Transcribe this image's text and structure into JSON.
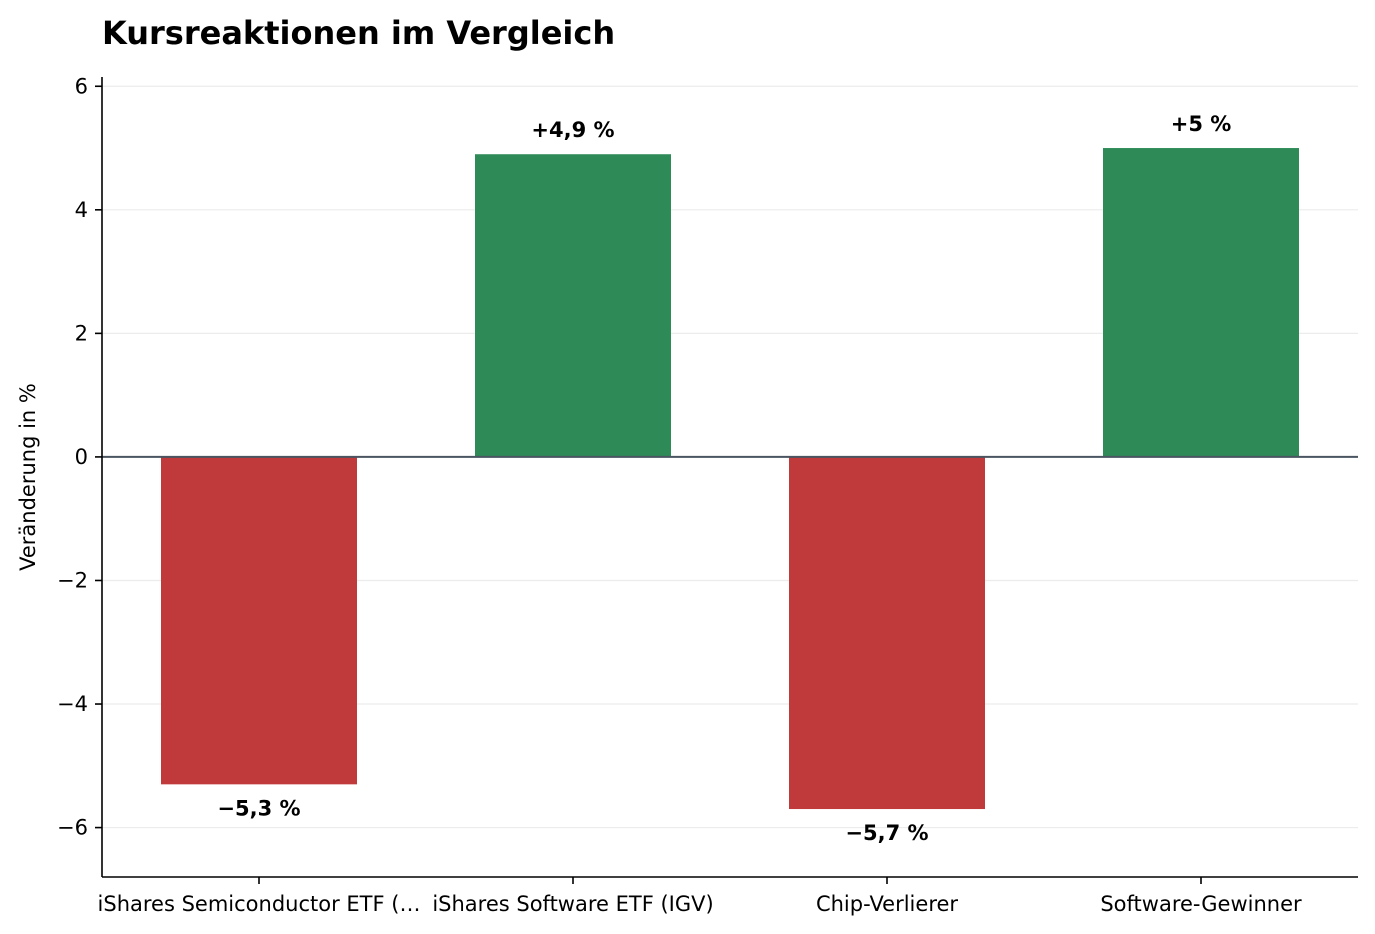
{
  "chart_data": {
    "type": "bar",
    "title": "Kursreaktionen im Vergleich",
    "xlabel": "",
    "ylabel": "Veränderung in %",
    "categories": [
      "iShares Semiconductor ETF (…",
      "iShares Software ETF (IGV)",
      "Chip-Verlierer",
      "Software-Gewinner"
    ],
    "values": [
      -5.3,
      4.9,
      -5.7,
      5.0
    ],
    "value_labels": [
      "−5,3 %",
      "+4,9 %",
      "−5,7 %",
      "+5 %"
    ],
    "bar_colors": [
      "#c0393b",
      "#2e8b57",
      "#c0393b",
      "#2e8b57"
    ],
    "ylim": [
      -6.8,
      6.15
    ],
    "yticks": [
      6,
      4,
      2,
      0,
      -2,
      -4,
      -6
    ],
    "ytick_labels": [
      "6",
      "4",
      "2",
      "0",
      "−2",
      "−4",
      "−6"
    ],
    "grid": "horizontal",
    "zero_line_color": "#4a5561",
    "grid_color": "#ececec"
  }
}
